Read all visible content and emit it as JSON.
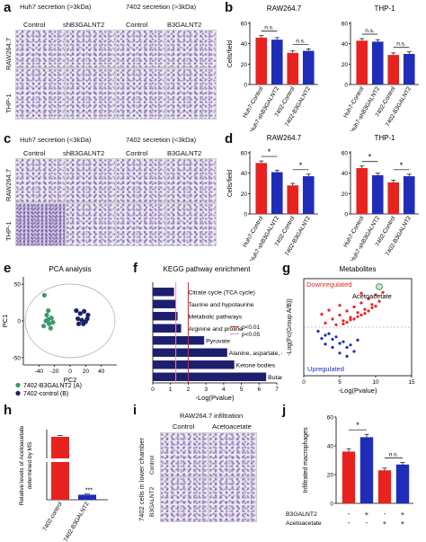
{
  "panel_letters": {
    "a": "a",
    "b": "b",
    "c": "c",
    "d": "d",
    "e": "e",
    "f": "f",
    "g": "g",
    "h": "h",
    "i": "i",
    "j": "j"
  },
  "a": {
    "header_left": "Huh7 secretion (>3kDa)",
    "header_right": "7402 secretion (>3kDa)",
    "cols": [
      "Control",
      "shB3GALNT2",
      "Control",
      "B3GALNT2"
    ],
    "rows": [
      "RAW264.7",
      "THP-1"
    ]
  },
  "c": {
    "header_left": "Huh7 secretion (<3kDa)",
    "header_right": "7402 secretion (<3kDa)",
    "cols": [
      "Control",
      "shB3GALNT2",
      "Control",
      "B3GALNT2"
    ],
    "rows": [
      "RAW264.7",
      "THP-1"
    ]
  },
  "colors": {
    "red": "#e8231f",
    "blue": "#1f2db8",
    "green": "#3a9a6a",
    "navy": "#1c1f6e"
  },
  "chart_data": [
    {
      "id": "b-raw",
      "type": "bar",
      "title": "RAW264.7",
      "ylabel": "Cells/field",
      "ylim": [
        0,
        60
      ],
      "yticks": [
        0,
        20,
        40,
        60
      ],
      "categories": [
        "Huh7-Control",
        "Huh7-shB3GALNT2",
        "7402-Control",
        "7402-B3GALNT2"
      ],
      "values": [
        46,
        44,
        31,
        33
      ],
      "errors": [
        2,
        2,
        2,
        2
      ],
      "colors": [
        "red",
        "blue",
        "red",
        "blue"
      ],
      "sig": [
        {
          "pair": [
            0,
            1
          ],
          "label": "n.s."
        },
        {
          "pair": [
            2,
            3
          ],
          "label": "n.s."
        }
      ]
    },
    {
      "id": "b-thp",
      "type": "bar",
      "title": "THP-1",
      "ylabel": "",
      "ylim": [
        0,
        60
      ],
      "yticks": [
        0,
        20,
        40,
        60
      ],
      "categories": [
        "Huh7-Control",
        "Huh7-shB3GALNT2",
        "7402-Control",
        "7402-B3GALNT2"
      ],
      "values": [
        43,
        42,
        29,
        30
      ],
      "errors": [
        2,
        2,
        2,
        2
      ],
      "colors": [
        "red",
        "blue",
        "red",
        "blue"
      ],
      "sig": [
        {
          "pair": [
            0,
            1
          ],
          "label": "n.s."
        },
        {
          "pair": [
            2,
            3
          ],
          "label": "n.s."
        }
      ]
    },
    {
      "id": "d-raw",
      "type": "bar",
      "title": "RAW264.7",
      "ylabel": "Cells/field",
      "ylim": [
        0,
        60
      ],
      "yticks": [
        0,
        20,
        40,
        60
      ],
      "categories": [
        "Huh7-Control",
        "Huh7-shB3GALNT2",
        "7402-Control",
        "7402-B3GALNT2"
      ],
      "values": [
        50,
        41,
        28,
        37
      ],
      "errors": [
        2,
        2,
        2,
        2
      ],
      "colors": [
        "red",
        "blue",
        "red",
        "blue"
      ],
      "sig": [
        {
          "pair": [
            0,
            1
          ],
          "label": "*"
        },
        {
          "pair": [
            2,
            3
          ],
          "label": "*"
        }
      ]
    },
    {
      "id": "d-thp",
      "type": "bar",
      "title": "THP-1",
      "ylabel": "",
      "ylim": [
        0,
        60
      ],
      "yticks": [
        0,
        20,
        40,
        60
      ],
      "categories": [
        "Huh7-Control",
        "Huh7-shB3GALNT2",
        "7402-Control",
        "7402-B3GALNT2"
      ],
      "values": [
        45,
        38,
        31,
        37
      ],
      "errors": [
        2,
        2,
        2,
        2
      ],
      "colors": [
        "red",
        "blue",
        "red",
        "blue"
      ],
      "sig": [
        {
          "pair": [
            0,
            1
          ],
          "label": "*"
        },
        {
          "pair": [
            2,
            3
          ],
          "label": "*"
        }
      ]
    },
    {
      "id": "e",
      "type": "scatter",
      "title": "PCA analysis",
      "xlabel": "PC2",
      "ylabel": "PC1",
      "xlim": [
        -60,
        60
      ],
      "ylim": [
        -60,
        60
      ],
      "xticks": [
        -40,
        -20,
        0,
        20,
        40
      ],
      "yticks": [
        -50,
        0,
        50
      ],
      "series": [
        {
          "name": "7402-B3GALNT2 (A)",
          "color": "green",
          "points": [
            [
              -33,
              35
            ],
            [
              -28,
              14
            ],
            [
              -30,
              8
            ],
            [
              -24,
              4
            ],
            [
              -28,
              2
            ],
            [
              -31,
              0
            ],
            [
              -27,
              -4
            ],
            [
              -25,
              -10
            ],
            [
              -34,
              -7
            ],
            [
              -22,
              -2
            ]
          ]
        },
        {
          "name": "7402-control (B)",
          "color": "navy",
          "points": [
            [
              8,
              14
            ],
            [
              13,
              10
            ],
            [
              18,
              13
            ],
            [
              23,
              8
            ],
            [
              10,
              3
            ],
            [
              15,
              1
            ],
            [
              20,
              -1
            ],
            [
              11,
              -4
            ],
            [
              17,
              -4
            ],
            [
              22,
              3
            ]
          ]
        }
      ]
    },
    {
      "id": "f",
      "type": "bar",
      "orientation": "horizontal",
      "title": "KEGG pathway enrichment",
      "xlabel": "-Log(Pvalue)",
      "xlim": [
        0,
        7
      ],
      "xticks": [
        0,
        1,
        2,
        3,
        4,
        5,
        6,
        7
      ],
      "categories": [
        "Citrate cycle (TCA cycle)",
        "Taurine and hypotaurine",
        "Metabolic pathways",
        "Arginine and proline",
        "Pyruvate",
        "Alanine, aspartate, glutamate",
        "Ketone bodies",
        "Butanoate"
      ],
      "values": [
        1.2,
        1.3,
        1.4,
        1.6,
        2.9,
        4.2,
        4.6,
        6.4
      ],
      "thresholds": [
        {
          "value": 2.0,
          "label": "p<0.01",
          "style": "red"
        },
        {
          "value": 1.3,
          "label": "p<0.05",
          "style": "pink"
        }
      ]
    },
    {
      "id": "g",
      "type": "scatter",
      "title": "Metabolites",
      "xlabel": "-Log(Pvalue)",
      "ylabel": "-Log(Fc(Group A/B))",
      "xlim": [
        0,
        15
      ],
      "ylim": [
        -6,
        6
      ],
      "xticks": [
        0,
        5,
        10,
        15
      ],
      "labels": {
        "down": "Downregulated",
        "up": "Upregulated",
        "highlight": "Acetoacetate"
      },
      "highlight_point": [
        10.5,
        5.0
      ],
      "series": [
        {
          "name": "Downregulated",
          "color": "red",
          "points": [
            [
              3,
              0.5
            ],
            [
              4,
              1
            ],
            [
              5,
              1.5
            ],
            [
              5.5,
              0.8
            ],
            [
              6,
              2
            ],
            [
              6.5,
              1.2
            ],
            [
              7,
              2.5
            ],
            [
              7.5,
              1.8
            ],
            [
              8,
              3
            ],
            [
              8.5,
              2.2
            ],
            [
              9,
              3.5
            ],
            [
              9.5,
              2.8
            ],
            [
              10,
              4
            ],
            [
              6,
              0.6
            ],
            [
              7,
              1
            ],
            [
              8,
              1.5
            ],
            [
              9,
              2
            ],
            [
              4.5,
              0.3
            ],
            [
              5.5,
              0.4
            ],
            [
              6.5,
              0.9
            ],
            [
              7.5,
              1.3
            ],
            [
              8.5,
              1.7
            ],
            [
              9.5,
              2.4
            ],
            [
              10.5,
              3.2
            ],
            [
              2.5,
              1.6
            ],
            [
              3.5,
              2.1
            ],
            [
              5,
              2.7
            ],
            [
              8,
              4.2
            ],
            [
              11,
              4.3
            ],
            [
              10,
              2.6
            ]
          ]
        },
        {
          "name": "Upregulated",
          "color": "blue",
          "points": [
            [
              2,
              -0.5
            ],
            [
              3,
              -1
            ],
            [
              4,
              -1.5
            ],
            [
              5,
              -2
            ],
            [
              6,
              -2.5
            ],
            [
              7,
              -3
            ],
            [
              3.5,
              -0.8
            ],
            [
              4.5,
              -1.2
            ],
            [
              5.5,
              -1.8
            ],
            [
              6.5,
              -2.2
            ],
            [
              2.5,
              -1.4
            ],
            [
              4,
              -2.5
            ],
            [
              5,
              -3.2
            ],
            [
              3,
              -2.1
            ],
            [
              7.5,
              -1.6
            ],
            [
              6,
              -3.6
            ]
          ]
        }
      ]
    },
    {
      "id": "h",
      "type": "bar",
      "ylabel": "Relative levels of Acetoacetate determined by MS",
      "categories": [
        "7402-control",
        "7402-B3GALNT2"
      ],
      "values": [
        1.0,
        0.08
      ],
      "errors": [
        0.02,
        0.01
      ],
      "colors": [
        "red",
        "blue"
      ],
      "sig": [
        {
          "index": 1,
          "label": "***"
        }
      ]
    },
    {
      "id": "j",
      "type": "bar",
      "ylabel": "Infiltrated macrophages",
      "ylim": [
        0,
        60
      ],
      "yticks": [
        0,
        20,
        40,
        60
      ],
      "values": [
        36,
        46,
        23,
        27
      ],
      "errors": [
        2,
        2,
        1.5,
        1.5
      ],
      "colors": [
        "red",
        "blue",
        "red",
        "blue"
      ],
      "row_labels": [
        "B3GALNT2",
        "Acetoacetate"
      ],
      "row_values": [
        [
          "-",
          "+",
          "-",
          "+"
        ],
        [
          "-",
          "-",
          "+",
          "+"
        ]
      ],
      "sig": [
        {
          "pair": [
            0,
            1
          ],
          "label": "*"
        },
        {
          "pair": [
            2,
            3
          ],
          "label": "n.s."
        }
      ]
    }
  ],
  "i": {
    "title": "RAW264.7 infiltration",
    "cols": [
      "Control",
      "Acetoacetate"
    ],
    "rows": [
      "Control",
      "B3GALNT2"
    ],
    "ylabel": "7402 cells in lower chamber"
  }
}
